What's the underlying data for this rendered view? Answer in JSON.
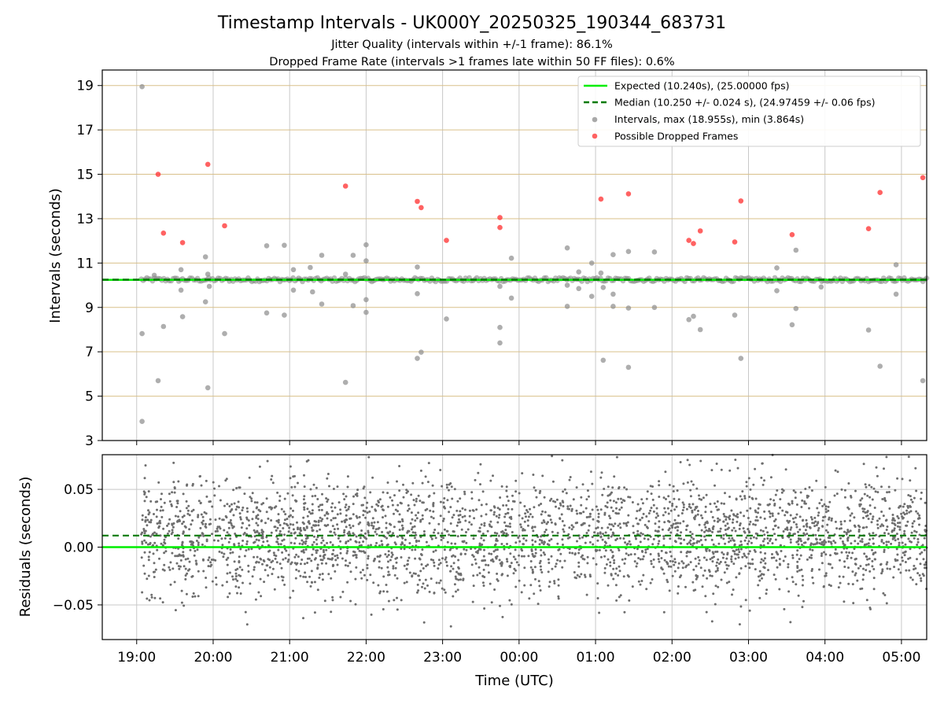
{
  "title": "Timestamp Intervals - UK000Y_20250325_190344_683731",
  "subtitle_1": "Jitter Quality (intervals within +/-1 frame): 86.1%",
  "subtitle_2": "Dropped Frame Rate (intervals >1 frames late within 50 FF files): 0.6%",
  "colors": {
    "expected": "#00ee00",
    "median": "#007a00",
    "intervals": "#8c8c8c",
    "dropped": "#ff3b3b",
    "residuals": "#6e6e6e",
    "grid_y_top": "#d9c08a",
    "grid": "#c8c8c8"
  },
  "chart_data": [
    {
      "type": "scatter",
      "panel": "intervals",
      "xlabel": "",
      "ylabel": "Intervals (seconds)",
      "ylim": [
        3,
        19.7
      ],
      "yticks": [
        3,
        5,
        7,
        9,
        11,
        13,
        15,
        17,
        19
      ],
      "x_unit": "hours since 00:00 UTC of first day (hours past 24 = next day)",
      "xlim": [
        18.55,
        29.33
      ],
      "expected_interval": 10.24,
      "median_interval": 10.25,
      "legend": {
        "placement": "top-right",
        "entries": [
          "Expected (10.240s), (25.00000 fps)",
          "Median (10.250 +/- 0.024 s), (24.97459 +/- 0.06 fps)",
          "Intervals, max (18.955s), min (3.864s)",
          "Possible Dropped Frames"
        ]
      },
      "series": [
        {
          "name": "Intervals, max (18.955s), min (3.864s)",
          "outliers": [
            [
              19.07,
              18.95
            ],
            [
              19.07,
              7.82
            ],
            [
              19.07,
              3.86
            ],
            [
              19.23,
              10.45
            ],
            [
              19.28,
              5.7
            ],
            [
              19.35,
              8.14
            ],
            [
              19.58,
              9.78
            ],
            [
              19.58,
              10.7
            ],
            [
              19.6,
              8.58
            ],
            [
              19.9,
              11.28
            ],
            [
              19.9,
              9.25
            ],
            [
              19.93,
              5.38
            ],
            [
              19.93,
              10.5
            ],
            [
              19.95,
              9.95
            ],
            [
              20.15,
              7.82
            ],
            [
              20.7,
              11.78
            ],
            [
              20.7,
              8.75
            ],
            [
              20.93,
              11.8
            ],
            [
              20.93,
              8.65
            ],
            [
              21.05,
              10.7
            ],
            [
              21.05,
              9.78
            ],
            [
              21.27,
              10.8
            ],
            [
              21.3,
              9.7
            ],
            [
              21.42,
              11.35
            ],
            [
              21.42,
              9.15
            ],
            [
              21.73,
              5.62
            ],
            [
              21.73,
              10.5
            ],
            [
              21.83,
              11.35
            ],
            [
              21.83,
              9.08
            ],
            [
              22.0,
              11.82
            ],
            [
              22.0,
              11.1
            ],
            [
              22.0,
              9.35
            ],
            [
              22.0,
              8.78
            ],
            [
              22.67,
              10.82
            ],
            [
              22.67,
              9.62
            ],
            [
              22.67,
              6.7
            ],
            [
              22.72,
              6.98
            ],
            [
              23.05,
              8.48
            ],
            [
              23.75,
              9.95
            ],
            [
              23.75,
              8.1
            ],
            [
              23.75,
              7.4
            ],
            [
              23.9,
              11.22
            ],
            [
              23.9,
              9.42
            ],
            [
              24.63,
              11.68
            ],
            [
              24.63,
              9.05
            ],
            [
              24.63,
              10.0
            ],
            [
              24.78,
              10.6
            ],
            [
              24.78,
              9.85
            ],
            [
              24.95,
              11.0
            ],
            [
              24.95,
              9.5
            ],
            [
              25.07,
              10.55
            ],
            [
              25.1,
              6.62
            ],
            [
              25.1,
              9.9
            ],
            [
              25.23,
              11.38
            ],
            [
              25.23,
              9.6
            ],
            [
              25.23,
              9.05
            ],
            [
              25.43,
              11.52
            ],
            [
              25.43,
              8.97
            ],
            [
              25.43,
              6.3
            ],
            [
              25.77,
              11.5
            ],
            [
              25.77,
              9.0
            ],
            [
              26.22,
              8.45
            ],
            [
              26.28,
              8.6
            ],
            [
              26.37,
              8.0
            ],
            [
              26.82,
              8.65
            ],
            [
              26.9,
              6.7
            ],
            [
              27.37,
              10.78
            ],
            [
              27.37,
              9.75
            ],
            [
              27.57,
              8.22
            ],
            [
              27.62,
              11.58
            ],
            [
              27.62,
              8.95
            ],
            [
              27.95,
              9.92
            ],
            [
              28.57,
              7.98
            ],
            [
              28.72,
              6.35
            ],
            [
              28.93,
              10.92
            ],
            [
              28.93,
              9.6
            ],
            [
              29.28,
              5.7
            ]
          ]
        },
        {
          "name": "Possible Dropped Frames",
          "values": [
            [
              19.28,
              15.0
            ],
            [
              19.35,
              12.35
            ],
            [
              19.6,
              11.92
            ],
            [
              19.93,
              15.45
            ],
            [
              20.15,
              12.68
            ],
            [
              21.73,
              14.47
            ],
            [
              22.67,
              13.78
            ],
            [
              22.72,
              13.5
            ],
            [
              23.05,
              12.02
            ],
            [
              23.75,
              13.05
            ],
            [
              23.75,
              12.6
            ],
            [
              25.07,
              13.88
            ],
            [
              25.43,
              14.12
            ],
            [
              26.22,
              12.02
            ],
            [
              26.28,
              11.88
            ],
            [
              26.37,
              12.45
            ],
            [
              26.82,
              11.95
            ],
            [
              26.9,
              13.8
            ],
            [
              27.57,
              12.28
            ],
            [
              28.57,
              12.55
            ],
            [
              28.72,
              14.18
            ],
            [
              29.28,
              14.85
            ]
          ]
        }
      ]
    },
    {
      "type": "scatter",
      "panel": "residuals",
      "xlabel": "Time (UTC)",
      "ylabel": "Residuals (seconds)",
      "ylim": [
        -0.08,
        0.08
      ],
      "yticks": [
        -0.05,
        0.0,
        0.05
      ],
      "ytick_labels": [
        "−0.05",
        "0.00",
        "0.05"
      ],
      "xlim": [
        18.55,
        29.33
      ],
      "xticks": [
        19,
        20,
        21,
        22,
        23,
        24,
        25,
        26,
        27,
        28,
        29
      ],
      "xtick_labels": [
        "19:00",
        "20:00",
        "21:00",
        "22:00",
        "23:00",
        "00:00",
        "01:00",
        "02:00",
        "03:00",
        "04:00",
        "05:00"
      ],
      "expected_residual": 0.0,
      "median_residual": 0.01,
      "residuals": {
        "count": 3200,
        "x_start": 19.06,
        "x_end": 29.33,
        "mean": 0.01,
        "std": 0.025,
        "range": [
          -0.08,
          0.08
        ]
      }
    }
  ]
}
